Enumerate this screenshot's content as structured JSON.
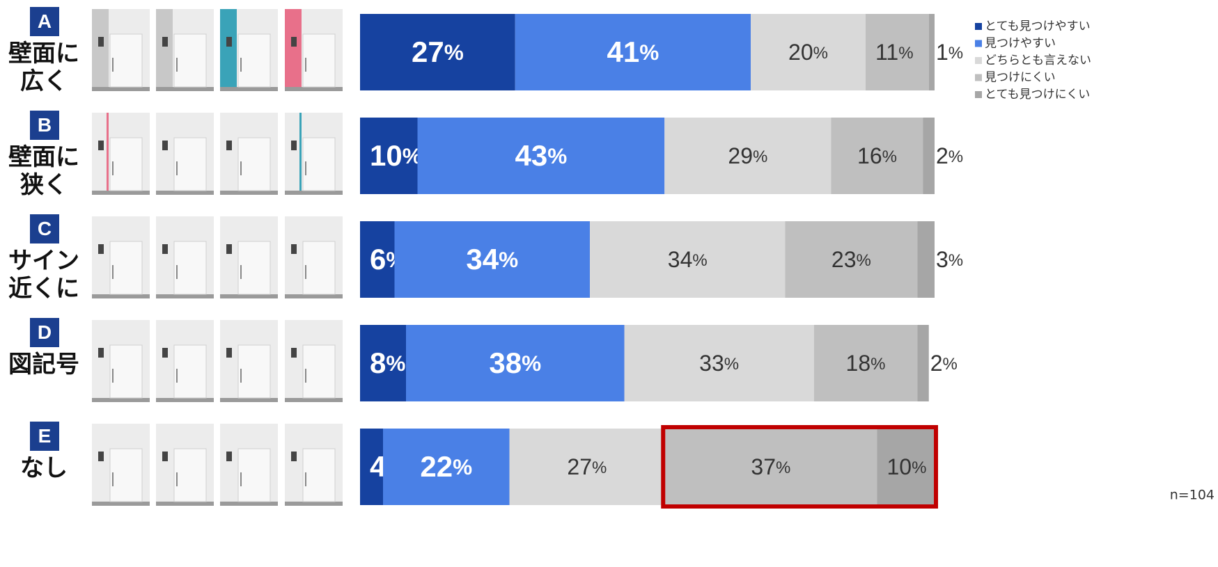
{
  "chart_data": {
    "type": "stacked_barh",
    "row_letters": [
      "A",
      "B",
      "C",
      "D",
      "E"
    ],
    "categories": [
      "壁面に広く",
      "壁面に狭く",
      "サイン近くに",
      "図記号",
      "なし"
    ],
    "xlim": [
      0,
      100
    ],
    "series": [
      {
        "name": "とても見つけやすい",
        "color": "#1642a0",
        "values": [
          27,
          10,
          6,
          8,
          4
        ],
        "value_labels": [
          "27%",
          "10%",
          "6%",
          "8%",
          "4%"
        ]
      },
      {
        "name": "見つけやすい",
        "color": "#4a80e6",
        "values": [
          41,
          43,
          34,
          38,
          22
        ],
        "value_labels": [
          "41%",
          "43%",
          "34%",
          "38%",
          "22%"
        ]
      },
      {
        "name": "どちらとも言えない",
        "color": "#d9d9d9",
        "values": [
          20,
          29,
          34,
          33,
          27
        ],
        "value_labels": [
          "20%",
          "29%",
          "34%",
          "33%",
          "27%"
        ]
      },
      {
        "name": "見つけにくい",
        "color": "#bfbfbf",
        "values": [
          11,
          16,
          23,
          18,
          37
        ],
        "value_labels": [
          "11%",
          "16%",
          "23%",
          "18%",
          "37%"
        ]
      },
      {
        "name": "とても見つけにくい",
        "color": "#a6a6a6",
        "values": [
          1,
          2,
          3,
          2,
          10
        ],
        "value_labels": [
          "1%",
          "2%",
          "3%",
          "2%",
          "10%"
        ]
      }
    ],
    "legend": "top-right",
    "note": "n=104"
  }
}
